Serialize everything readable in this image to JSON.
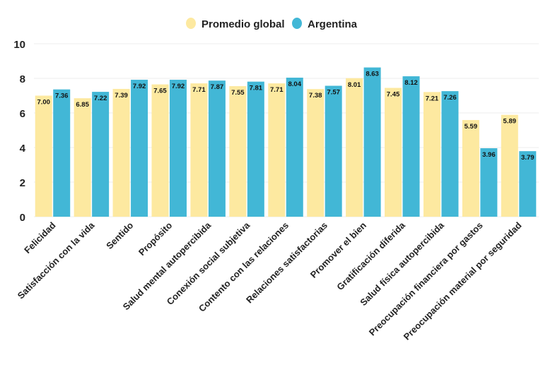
{
  "chart_data": {
    "type": "bar",
    "title": "",
    "xlabel": "",
    "ylabel": "",
    "ylim": [
      0,
      10
    ],
    "yticks": [
      "0",
      "2",
      "4",
      "6",
      "8",
      "10"
    ],
    "grid": true,
    "legend_placement": "top-center",
    "categories": [
      "Felicidad",
      "Satisfacción con la vida",
      "Sentido",
      "Propósito",
      "Salud mental autopercibida",
      "Conexión social subjetiva",
      "Contento con las relaciones",
      "Relaciones satisfactorias",
      "Promover el bien",
      "Gratificación diferida",
      "Salud física autopercibida",
      "Preocupación financiera por gastos",
      "Preocupación material por seguridad"
    ],
    "series": [
      {
        "name": "Promedio global",
        "color": "#FDE9A0",
        "values": [
          7.0,
          6.85,
          7.39,
          7.65,
          7.71,
          7.55,
          7.71,
          7.38,
          8.01,
          7.45,
          7.21,
          5.59,
          5.89
        ]
      },
      {
        "name": "Argentina",
        "color": "#42B7D6",
        "values": [
          7.36,
          7.22,
          7.92,
          7.92,
          7.87,
          7.81,
          8.04,
          7.57,
          8.63,
          8.12,
          7.26,
          3.96,
          3.79
        ]
      }
    ]
  }
}
